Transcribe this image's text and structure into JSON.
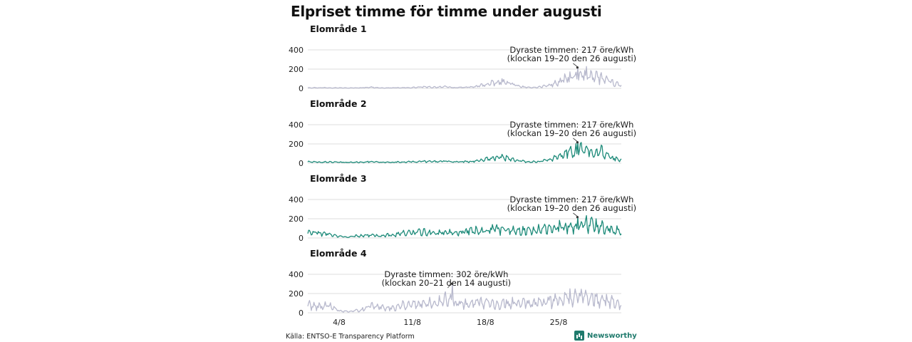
{
  "title": "Elpriset timme för timme under augusti",
  "source": "Källa: ENTSO-E Transparency Platform",
  "brand": {
    "name": "Newsworthy",
    "logo_icon": "bar-chart-icon",
    "color": "#1f7a6c"
  },
  "chart_data": [
    {
      "type": "line",
      "title": "Elområde 1",
      "color": "#b8b9cd",
      "ylim": [
        0,
        400
      ],
      "yticks": [
        0,
        200,
        400
      ],
      "x_unit": "day of August",
      "xlim": [
        1,
        31
      ],
      "x": [
        1,
        2,
        3,
        4,
        5,
        6,
        7,
        8,
        9,
        10,
        11,
        12,
        13,
        14,
        15,
        16,
        17,
        18,
        19,
        20,
        21,
        22,
        23,
        24,
        25,
        26,
        27,
        28,
        29,
        30,
        31
      ],
      "values": [
        8,
        6,
        7,
        5,
        4,
        6,
        12,
        4,
        5,
        6,
        8,
        14,
        12,
        16,
        8,
        10,
        16,
        40,
        55,
        70,
        25,
        8,
        12,
        30,
        60,
        110,
        120,
        150,
        110,
        60,
        30
      ],
      "annotation": {
        "line1": "Dyraste timmen: 217 öre/kWh",
        "line2": "(klockan 19–20 den 26 augusti)",
        "x": 26.8,
        "y": 217
      }
    },
    {
      "type": "line",
      "title": "Elområde 2",
      "color": "#1e8b7a",
      "ylim": [
        0,
        400
      ],
      "yticks": [
        0,
        200,
        400
      ],
      "x_unit": "day of August",
      "xlim": [
        1,
        31
      ],
      "x": [
        1,
        2,
        3,
        4,
        5,
        6,
        7,
        8,
        9,
        10,
        11,
        12,
        13,
        14,
        15,
        16,
        17,
        18,
        19,
        20,
        21,
        22,
        23,
        24,
        25,
        26,
        27,
        28,
        29,
        30,
        31
      ],
      "values": [
        14,
        10,
        12,
        9,
        8,
        10,
        16,
        8,
        10,
        12,
        14,
        18,
        16,
        20,
        14,
        16,
        20,
        42,
        55,
        70,
        30,
        12,
        16,
        34,
        62,
        115,
        125,
        150,
        115,
        60,
        35
      ],
      "annotation": {
        "line1": "Dyraste timmen: 217 öre/kWh",
        "line2": "(klockan 19–20 den 26 augusti)",
        "x": 26.8,
        "y": 217
      }
    },
    {
      "type": "line",
      "title": "Elområde 3",
      "color": "#1e8b7a",
      "ylim": [
        0,
        400
      ],
      "yticks": [
        0,
        200,
        400
      ],
      "x_unit": "day of August",
      "xlim": [
        1,
        31
      ],
      "x": [
        1,
        2,
        3,
        4,
        5,
        6,
        7,
        8,
        9,
        10,
        11,
        12,
        13,
        14,
        15,
        16,
        17,
        18,
        19,
        20,
        21,
        22,
        23,
        24,
        25,
        26,
        27,
        28,
        29,
        30,
        31
      ],
      "values": [
        55,
        50,
        40,
        15,
        10,
        25,
        30,
        25,
        30,
        50,
        55,
        60,
        50,
        55,
        60,
        70,
        75,
        80,
        85,
        90,
        80,
        75,
        85,
        95,
        110,
        125,
        135,
        140,
        120,
        90,
        65
      ],
      "annotation": {
        "line1": "Dyraste timmen: 217 öre/kWh",
        "line2": "(klockan 19–20 den 26 augusti)",
        "x": 26.8,
        "y": 217
      }
    },
    {
      "type": "line",
      "title": "Elområde 4",
      "color": "#b8b9cd",
      "ylim": [
        0,
        400
      ],
      "yticks": [
        0,
        200,
        400
      ],
      "x_unit": "day of August",
      "xlim": [
        1,
        31
      ],
      "x": [
        1,
        2,
        3,
        4,
        5,
        6,
        7,
        8,
        9,
        10,
        11,
        12,
        13,
        14,
        15,
        16,
        17,
        18,
        19,
        20,
        21,
        22,
        23,
        24,
        25,
        26,
        27,
        28,
        29,
        30,
        31
      ],
      "values": [
        80,
        70,
        75,
        20,
        10,
        30,
        70,
        60,
        50,
        80,
        90,
        100,
        110,
        140,
        110,
        90,
        100,
        105,
        110,
        100,
        95,
        100,
        110,
        120,
        140,
        150,
        150,
        150,
        130,
        110,
        90
      ],
      "annotation": {
        "line1": "Dyraste timmen: 302 öre/kWh",
        "line2": "(klockan 20–21 den 14 augusti)",
        "x": 14.8,
        "y": 302
      }
    }
  ],
  "x_axis": {
    "ticks": [
      4,
      11,
      18,
      25
    ],
    "tick_labels": [
      "4/8",
      "11/8",
      "18/8",
      "25/8"
    ]
  }
}
